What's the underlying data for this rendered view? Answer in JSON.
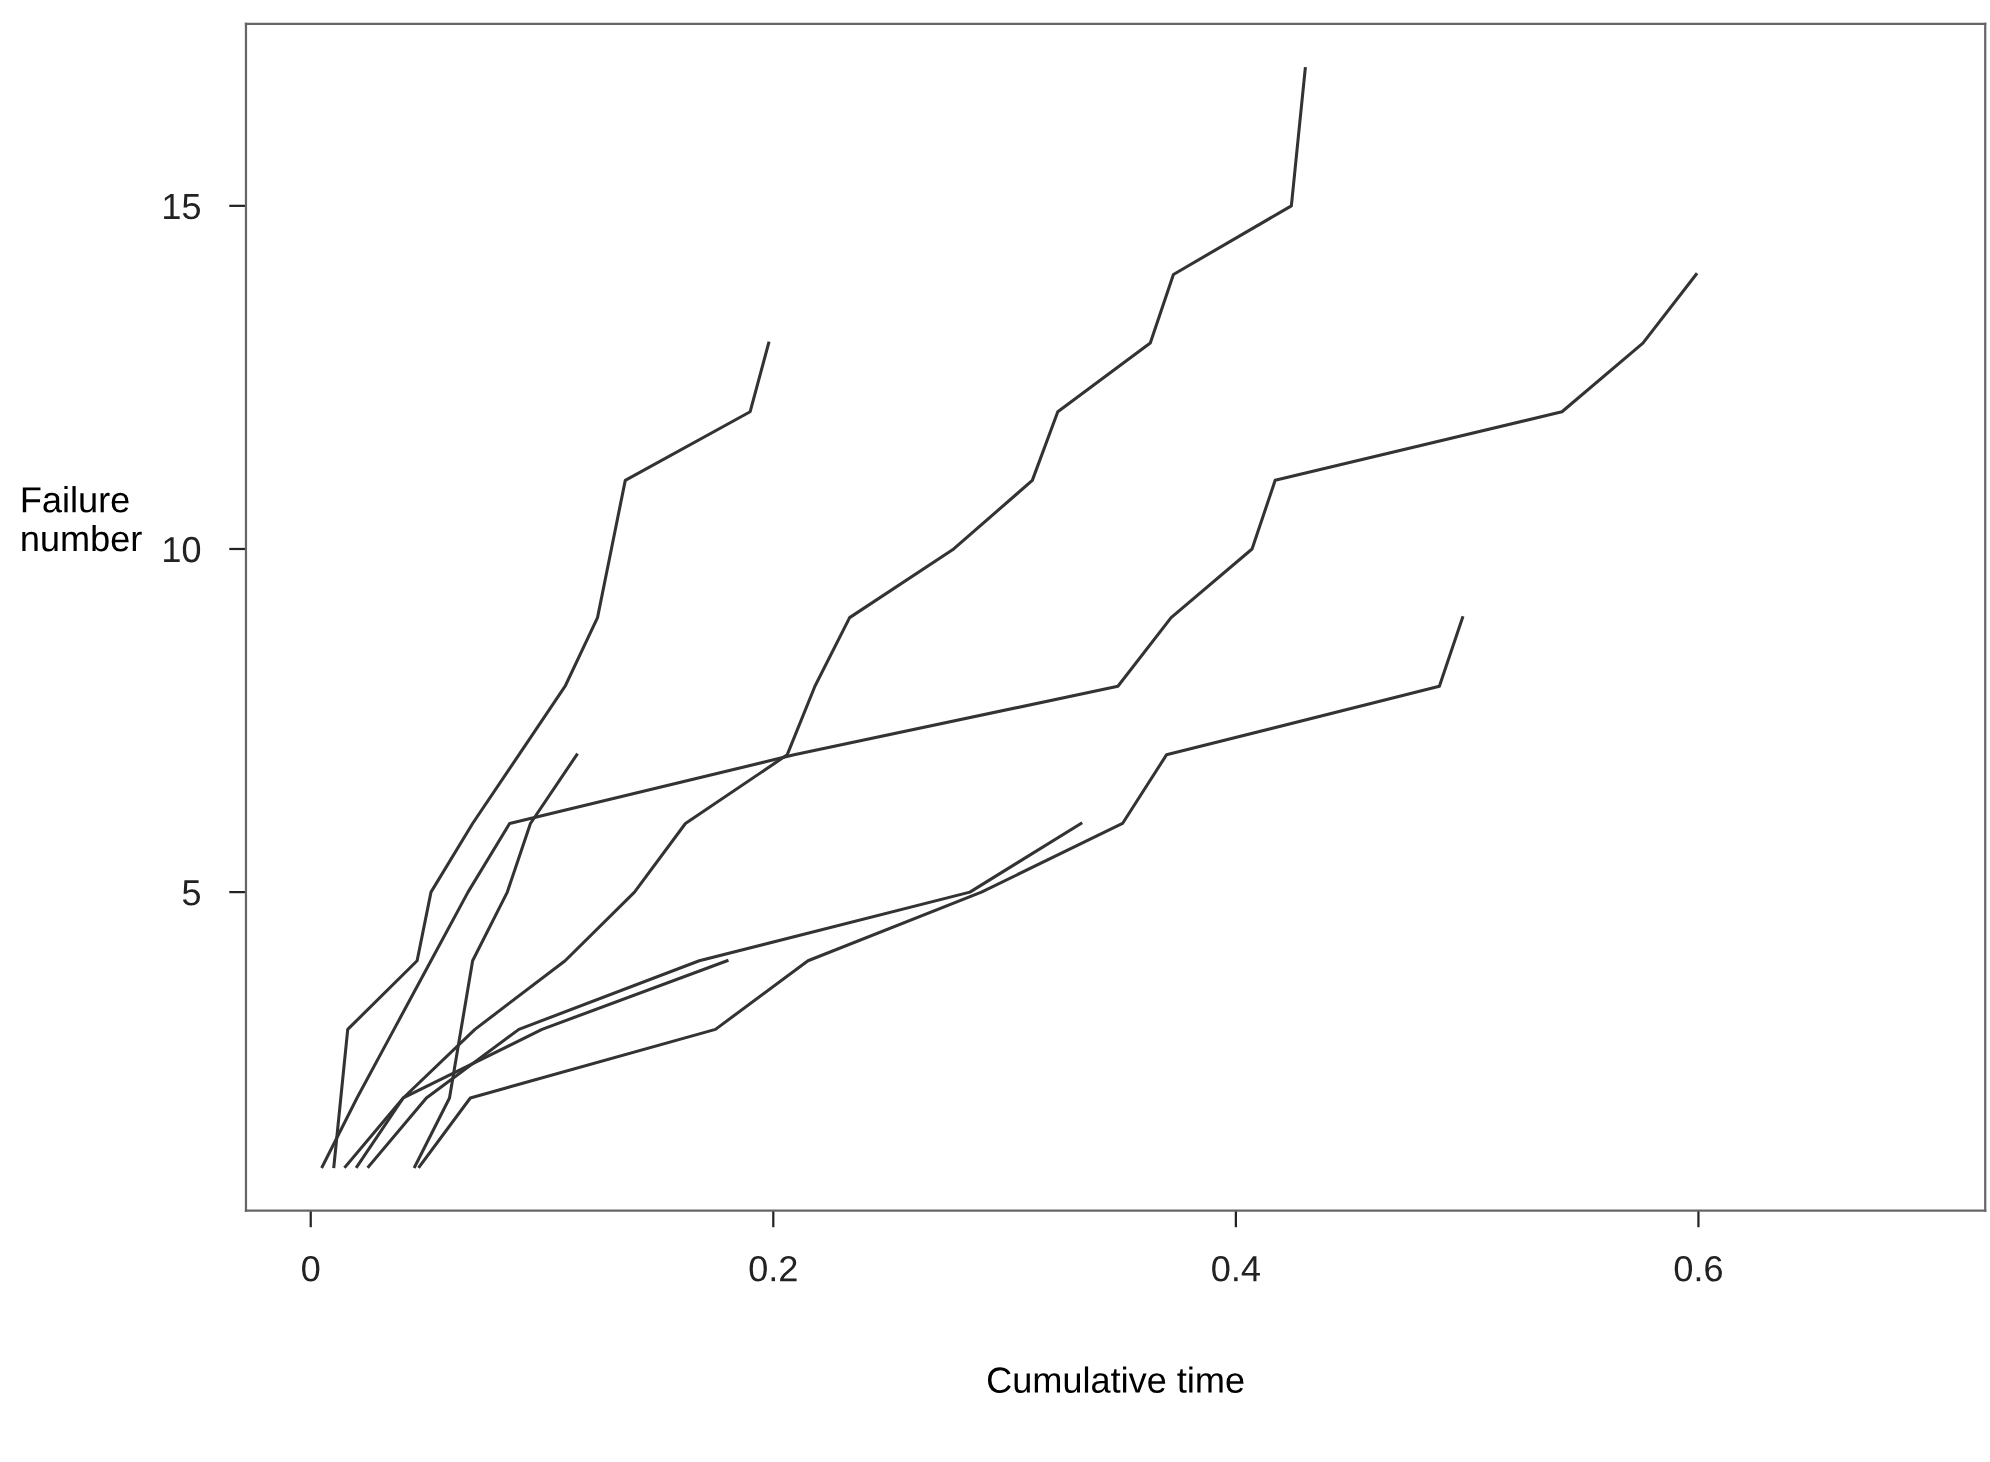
{
  "chart_data": {
    "type": "line",
    "xlabel": "Cumulative time",
    "ylabel": "Failure number",
    "xlim": [
      -0.028,
      0.724
    ],
    "ylim": [
      0.36,
      17.65
    ],
    "xticks": [
      0,
      0.2,
      0.4,
      0.6
    ],
    "yticks": [
      5,
      10,
      15
    ],
    "grid": false,
    "legend": false,
    "marker": "none",
    "line_style": "solid",
    "series": [
      {
        "color": "#333333",
        "x": [
          0.01,
          0.013,
          0.016,
          0.046,
          0.052,
          0.07,
          0.09,
          0.11,
          0.124,
          0.13,
          0.136,
          0.19,
          0.198
        ],
        "values": [
          1,
          2,
          3,
          4,
          5,
          6,
          7,
          8,
          9,
          10,
          11,
          12,
          13
        ]
      },
      {
        "color": "#333333",
        "x": [
          0.015,
          0.04,
          0.071,
          0.11,
          0.14,
          0.162,
          0.206,
          0.218,
          0.233,
          0.278,
          0.312,
          0.323,
          0.363,
          0.373,
          0.424,
          0.427,
          0.43
        ],
        "values": [
          1,
          2,
          3,
          4,
          5,
          6,
          7,
          8,
          9,
          10,
          11,
          12,
          13,
          14,
          15,
          16,
          17
        ]
      },
      {
        "color": "#333333",
        "x": [
          0.005,
          0.02,
          0.036,
          0.052,
          0.068,
          0.086,
          0.209,
          0.349,
          0.372,
          0.407,
          0.417,
          0.541,
          0.576,
          0.599
        ],
        "values": [
          1,
          2,
          3,
          4,
          5,
          6,
          7,
          8,
          9,
          10,
          11,
          12,
          13,
          14
        ]
      },
      {
        "color": "#333333",
        "x": [
          0.047,
          0.069,
          0.175,
          0.215,
          0.29,
          0.351,
          0.37,
          0.488,
          0.498
        ],
        "values": [
          1,
          2,
          3,
          4,
          5,
          6,
          7,
          8,
          9
        ]
      },
      {
        "color": "#333333",
        "x": [
          0.025,
          0.05,
          0.09,
          0.168,
          0.285,
          0.333
        ],
        "values": [
          1,
          2,
          3,
          4,
          5,
          6
        ]
      },
      {
        "color": "#333333",
        "x": [
          0.02,
          0.04,
          0.1,
          0.18
        ],
        "values": [
          1,
          2,
          3,
          4
        ]
      },
      {
        "color": "#333333",
        "x": [
          0.045,
          0.06,
          0.065,
          0.07,
          0.085,
          0.095,
          0.115
        ],
        "values": [
          1,
          2,
          3,
          4,
          5,
          6,
          7
        ]
      }
    ]
  }
}
